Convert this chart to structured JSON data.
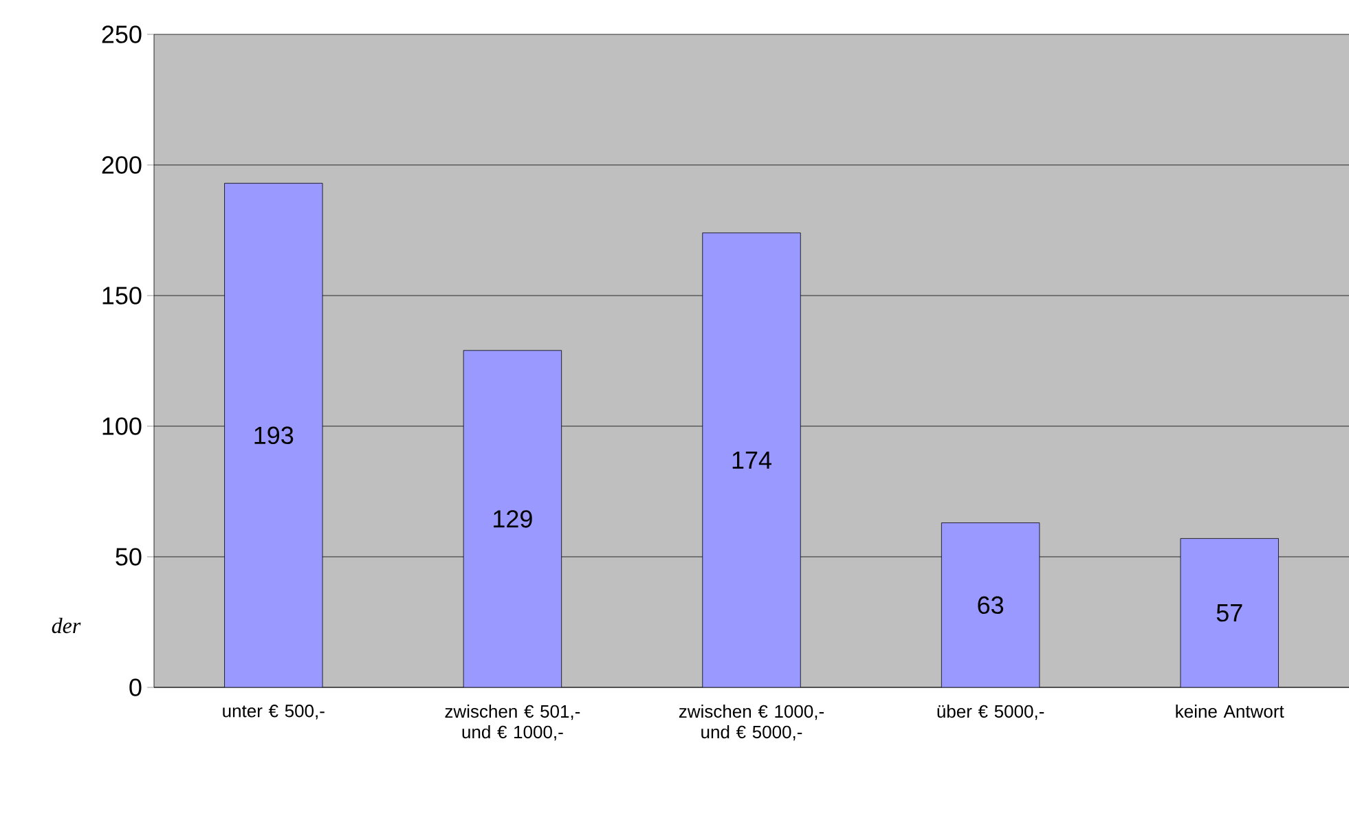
{
  "chart_data": {
    "type": "bar",
    "categories": [
      "unter € 500,-",
      "zwischen € 501,- und € 1000,-",
      "zwischen € 1000,- und € 5000,-",
      "über € 5000,-",
      "keine Antwort"
    ],
    "values": [
      193,
      129,
      174,
      63,
      57
    ],
    "color": "#9999ff",
    "ylim": [
      0,
      250
    ],
    "yticks": [
      0,
      50,
      100,
      150,
      200,
      250
    ],
    "grid": "y",
    "data_labels": true,
    "annotations": [
      "der"
    ]
  }
}
